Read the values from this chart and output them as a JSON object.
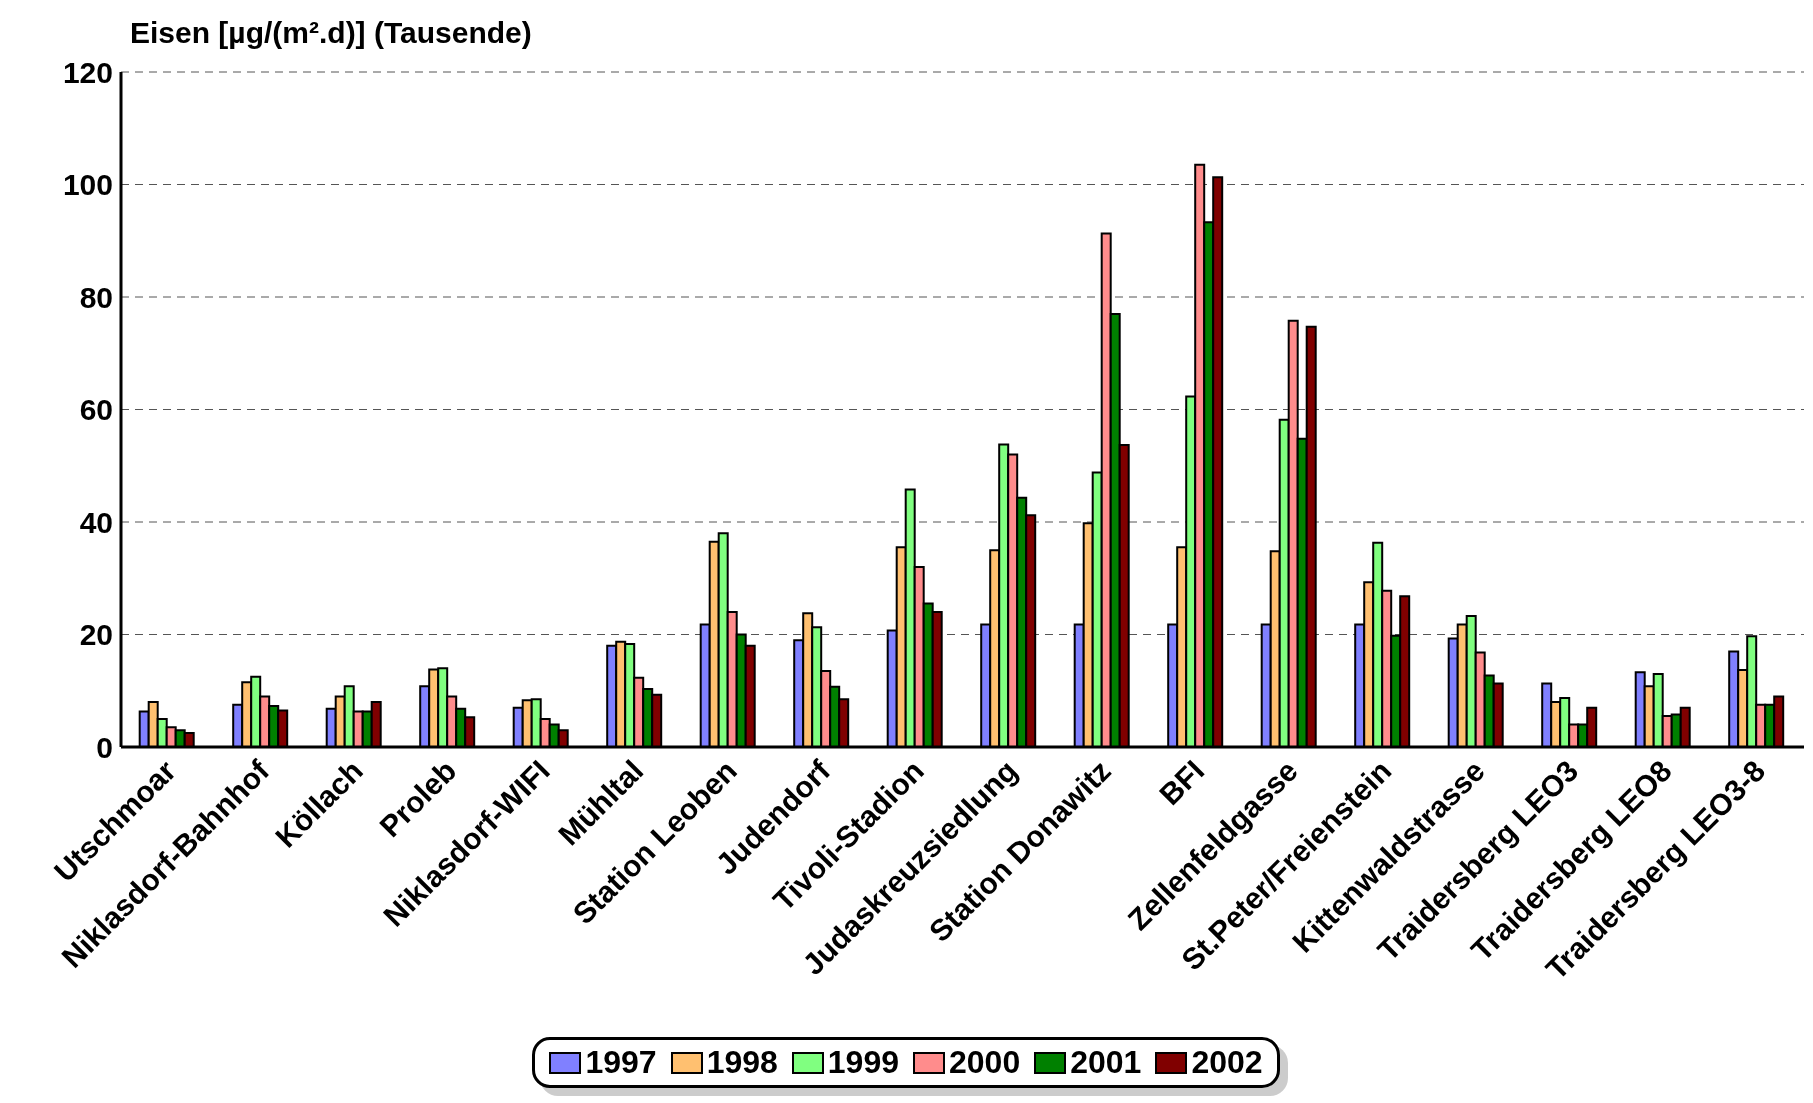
{
  "chart_data": {
    "type": "bar",
    "title": "Eisen [µg/(m².d)] (Tausende)",
    "categories": [
      "Utschmoar",
      "Niklasdorf-Bahnhof",
      "Köllach",
      "Proleb",
      "Niklasdorf-WIFI",
      "Mühltal",
      "Station Leoben",
      "Judendorf",
      "Tivoli-Stadion",
      "Judaskreuzsiedlung",
      "Station Donawitz",
      "BFI",
      "Zellenfeldgasse",
      "St.Peter/Freienstein",
      "Kittenwaldstrasse",
      "Traidersberg LEO3",
      "Traidersberg LEO8",
      "Traidersberg LEO3-8"
    ],
    "series": [
      {
        "name": "1997",
        "color": "#8080ff",
        "values": [
          6.3,
          7.5,
          6.8,
          10.8,
          7,
          18,
          21.8,
          19,
          20.7,
          21.8,
          21.8,
          21.8,
          21.8,
          21.8,
          19.3,
          11.3,
          13.3,
          17
        ]
      },
      {
        "name": "1998",
        "color": "#ffc070",
        "values": [
          8,
          11.5,
          9,
          13.8,
          8.3,
          18.7,
          36.5,
          23.8,
          35.5,
          35,
          39.8,
          35.5,
          34.8,
          29.3,
          21.8,
          8,
          10.8,
          13.7
        ]
      },
      {
        "name": "1999",
        "color": "#80ff80",
        "values": [
          5,
          12.5,
          10.8,
          14,
          8.5,
          18.3,
          38,
          21.3,
          45.8,
          53.8,
          48.8,
          62.3,
          58.2,
          36.3,
          23.3,
          8.7,
          13,
          19.7
        ]
      },
      {
        "name": "2000",
        "color": "#ff8c8c",
        "values": [
          3.5,
          9,
          6.3,
          9,
          5,
          12.3,
          24,
          13.5,
          32,
          52,
          91.3,
          103.5,
          75.8,
          27.8,
          16.8,
          4,
          5.5,
          7.5
        ]
      },
      {
        "name": "2001",
        "color": "#008000",
        "values": [
          3,
          7.3,
          6.3,
          6.8,
          4,
          10.3,
          20,
          10.7,
          25.5,
          44.3,
          77,
          93.3,
          54.8,
          19.8,
          12.7,
          4,
          5.8,
          7.5
        ]
      },
      {
        "name": "2002",
        "color": "#800000",
        "values": [
          2.5,
          6.5,
          8,
          5.3,
          3,
          9.3,
          18,
          8.5,
          24,
          41.2,
          53.7,
          101.3,
          74.7,
          26.8,
          11.3,
          7,
          7,
          9
        ]
      }
    ],
    "ylim": [
      0,
      120
    ],
    "yticks": [
      0,
      20,
      40,
      60,
      80,
      100,
      120
    ],
    "grid": "y",
    "legend": "bottom"
  }
}
